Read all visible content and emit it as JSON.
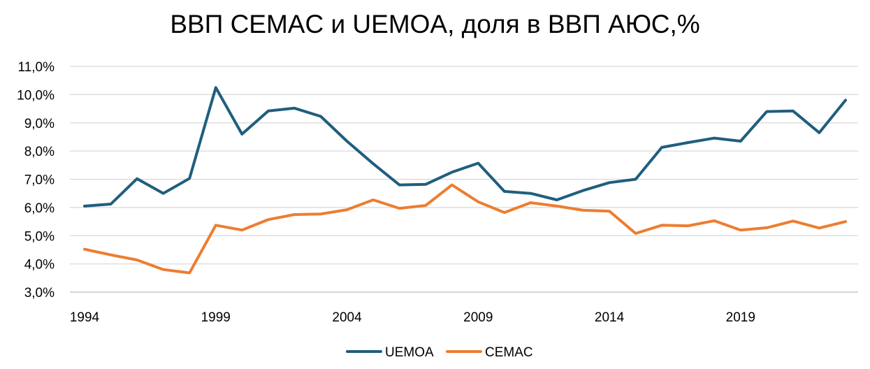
{
  "chart_data": {
    "type": "line",
    "title": "ВВП CEMAC и UEMOA, доля в ВВП АЮС,%",
    "xlabel": "",
    "ylabel": "",
    "x": [
      1994,
      1995,
      1996,
      1997,
      1998,
      1999,
      2000,
      2001,
      2002,
      2003,
      2004,
      2005,
      2006,
      2007,
      2008,
      2009,
      2010,
      2011,
      2012,
      2013,
      2014,
      2015,
      2016,
      2017,
      2018,
      2019,
      2020,
      2021,
      2022,
      2023
    ],
    "xlim": [
      1994,
      2023
    ],
    "x_ticks": [
      1994,
      1999,
      2004,
      2009,
      2014,
      2019
    ],
    "ylim": [
      3.0,
      11.0
    ],
    "y_ticks": [
      3,
      4,
      5,
      6,
      7,
      8,
      9,
      10,
      11
    ],
    "y_tick_labels": [
      "3,0%",
      "4,0%",
      "5,0%",
      "6,0%",
      "7,0%",
      "8,0%",
      "9,0%",
      "10,0%",
      "11,0%"
    ],
    "grid": "horizontal",
    "legend_position": "bottom",
    "series": [
      {
        "name": "UEMOA",
        "color": "#1F5E7D",
        "values": [
          6.05,
          6.12,
          7.02,
          6.5,
          7.03,
          10.25,
          8.6,
          9.42,
          9.52,
          9.23,
          8.35,
          7.55,
          6.8,
          6.82,
          7.25,
          7.57,
          6.57,
          6.5,
          6.27,
          6.6,
          6.88,
          7.0,
          8.13,
          8.3,
          8.46,
          8.35,
          9.4,
          9.42,
          8.65,
          9.8
        ]
      },
      {
        "name": "CEMAC",
        "color": "#ED7D31",
        "values": [
          4.52,
          4.32,
          4.14,
          3.8,
          3.68,
          5.37,
          5.2,
          5.57,
          5.75,
          5.77,
          5.92,
          6.27,
          5.97,
          6.07,
          6.8,
          6.2,
          5.82,
          6.17,
          6.05,
          5.9,
          5.87,
          5.08,
          5.37,
          5.35,
          5.53,
          5.2,
          5.28,
          5.52,
          5.27,
          5.5
        ]
      }
    ]
  }
}
